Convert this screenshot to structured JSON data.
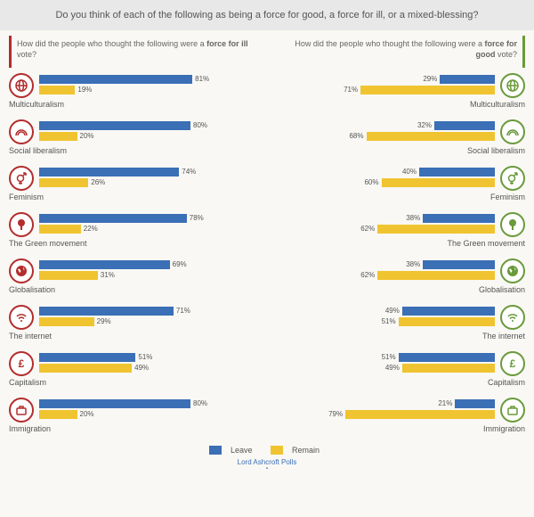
{
  "header": "Do you think of each of the following as being a force for good, a force for ill, or a mixed-blessing?",
  "colors": {
    "leave": "#3b6fb6",
    "remain": "#f0c430",
    "ill": "#b32d2d",
    "good": "#6a9a3a",
    "bg": "#f9f8f4",
    "header_bg": "#e8e8e8"
  },
  "legend": {
    "leave": "Leave",
    "remain": "Remain"
  },
  "credit": "Lord Ashcroft Polls",
  "left": {
    "heading_prefix": "How did the people who thought the following were a ",
    "heading_bold": "force for ill",
    "heading_suffix": " vote?",
    "max_scale": 100,
    "items": [
      {
        "label": "Multiculturalism",
        "icon": "globe",
        "leave": 81,
        "remain": 19
      },
      {
        "label": "Social liberalism",
        "icon": "rainbow",
        "leave": 80,
        "remain": 20
      },
      {
        "label": "Feminism",
        "icon": "gender",
        "leave": 74,
        "remain": 26
      },
      {
        "label": "The Green movement",
        "icon": "tree",
        "leave": 78,
        "remain": 22
      },
      {
        "label": "Globalisation",
        "icon": "world",
        "leave": 69,
        "remain": 31
      },
      {
        "label": "The internet",
        "icon": "wifi",
        "leave": 71,
        "remain": 29
      },
      {
        "label": "Capitalism",
        "icon": "pound",
        "leave": 51,
        "remain": 49
      },
      {
        "label": "Immigration",
        "icon": "suitcase",
        "leave": 80,
        "remain": 20
      }
    ]
  },
  "right": {
    "heading_prefix": "How did the people who thought the following were a ",
    "heading_bold": "force for good",
    "heading_suffix": " vote?",
    "max_scale": 100,
    "items": [
      {
        "label": "Multiculturalism",
        "icon": "globe",
        "leave": 29,
        "remain": 71
      },
      {
        "label": "Social liberalism",
        "icon": "rainbow",
        "leave": 32,
        "remain": 68
      },
      {
        "label": "Feminism",
        "icon": "gender",
        "leave": 40,
        "remain": 60
      },
      {
        "label": "The Green movement",
        "icon": "tree",
        "leave": 38,
        "remain": 62
      },
      {
        "label": "Globalisation",
        "icon": "world",
        "leave": 38,
        "remain": 62
      },
      {
        "label": "The internet",
        "icon": "wifi",
        "leave": 49,
        "remain": 51
      },
      {
        "label": "Capitalism",
        "icon": "pound",
        "leave": 51,
        "remain": 49
      },
      {
        "label": "Immigration",
        "icon": "suitcase",
        "leave": 21,
        "remain": 79
      }
    ]
  },
  "icons": {
    "globe": "⊕",
    "rainbow": "◠",
    "gender": "⚥",
    "tree": "✿",
    "world": "●",
    "wifi": "⋯",
    "pound": "£",
    "suitcase": "▯"
  }
}
